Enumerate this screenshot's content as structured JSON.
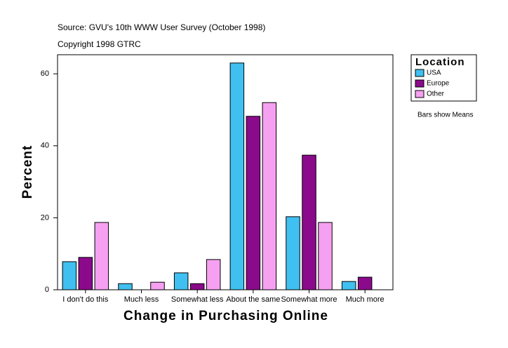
{
  "chart_data": {
    "type": "bar",
    "title": "Source: GVU's 10th WWW User Survey (October 1998)",
    "subtitle": "Copyright 1998 GTRC",
    "x_label": "Change in Purchasing Online",
    "y_label": "Percent",
    "annotation": "Bars show Means",
    "legend_title": "Location",
    "categories": [
      "I don't do this",
      "Much less",
      "Somewhat less",
      "About the same",
      "Somewhat more",
      "Much more"
    ],
    "series": [
      {
        "name": "USA",
        "color": "#40c0f0",
        "values": [
          7.8,
          1.7,
          4.7,
          63,
          20.3,
          2.3
        ]
      },
      {
        "name": "Europe",
        "color": "#8b0a8b",
        "values": [
          9.0,
          null,
          1.7,
          48.2,
          37.4,
          3.5
        ]
      },
      {
        "name": "Other",
        "color": "#f5a0f0",
        "values": [
          18.7,
          2.1,
          8.4,
          52,
          18.7,
          null
        ]
      }
    ],
    "ylim": [
      0,
      65.3
    ],
    "yticks": [
      0,
      20,
      40,
      60
    ],
    "grid": false
  }
}
